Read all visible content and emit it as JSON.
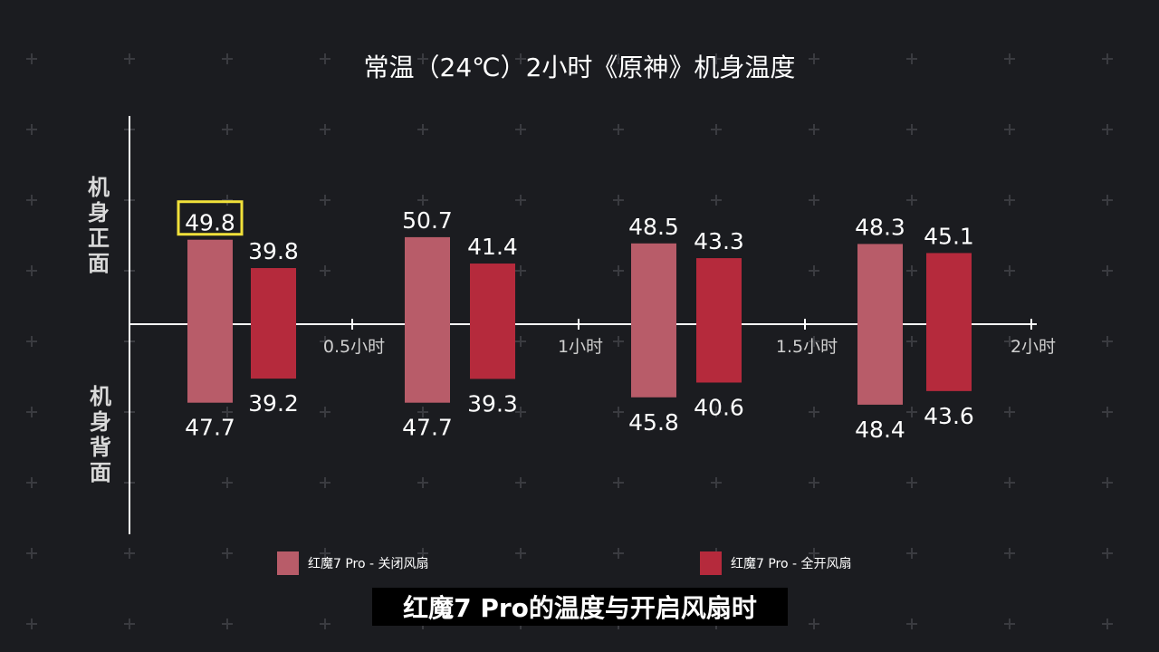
{
  "chart_data": {
    "type": "bar",
    "title": "常温（24℃）2小时《原神》机身温度",
    "upper_label": "机身正面",
    "lower_label": "机身背面",
    "x_tick_labels": [
      "0.5小时",
      "1小时",
      "1.5小时",
      "2小时"
    ],
    "categories": [
      "0.5小时",
      "1小时",
      "1.5小时",
      "2小时"
    ],
    "series": [
      {
        "name": "红魔7 Pro - 关闭风扇",
        "front": [
          49.8,
          50.7,
          48.5,
          48.3
        ],
        "back": [
          47.7,
          47.7,
          45.8,
          48.4
        ],
        "color": "#b85c69"
      },
      {
        "name": "红魔7 Pro - 全开风扇",
        "front": [
          39.8,
          41.4,
          43.3,
          45.1
        ],
        "back": [
          39.2,
          39.3,
          40.6,
          43.6
        ],
        "color": "#b52a3c"
      }
    ],
    "highlight": {
      "series": 0,
      "part": "front",
      "index": 0,
      "color": "#f1e13a"
    },
    "grid": false,
    "legend_position": "bottom"
  },
  "caption": "红魔7 Pro的温度与开启风扇时",
  "colors": {
    "background": "#1b1c20",
    "axis": "#ffffff",
    "decor_plus": "#3a3b40"
  }
}
